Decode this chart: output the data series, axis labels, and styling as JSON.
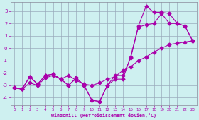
{
  "xlabel": "Windchill (Refroidissement éolien,°C)",
  "bg_color": "#cef0f0",
  "line_color": "#aa00aa",
  "grid_color": "#99aabb",
  "xlim": [
    -0.5,
    23.5
  ],
  "ylim": [
    -4.6,
    3.7
  ],
  "yticks": [
    -4,
    -3,
    -2,
    -1,
    0,
    1,
    2,
    3
  ],
  "xticks": [
    0,
    1,
    2,
    3,
    4,
    5,
    6,
    7,
    8,
    9,
    10,
    11,
    12,
    13,
    14,
    15,
    16,
    17,
    18,
    19,
    20,
    21,
    22,
    23
  ],
  "line1_x": [
    0,
    1,
    2,
    3,
    4,
    5,
    6,
    7,
    8,
    9,
    10,
    11,
    12,
    13,
    14,
    15,
    16,
    17,
    18,
    19,
    20,
    21,
    22,
    23
  ],
  "line1_y": [
    -3.2,
    -3.3,
    -2.8,
    -3.0,
    -2.4,
    -2.2,
    -2.5,
    -2.2,
    -2.6,
    -2.9,
    -3.0,
    -2.8,
    -2.5,
    -2.3,
    -1.8,
    -1.5,
    -1.0,
    -0.7,
    -0.3,
    0.0,
    0.3,
    0.4,
    0.5,
    0.6
  ],
  "line2_x": [
    0,
    1,
    2,
    3,
    4,
    5,
    6,
    7,
    8,
    9,
    10,
    11,
    12,
    13,
    14,
    15,
    16,
    17,
    18,
    19,
    20,
    21,
    22,
    23
  ],
  "line2_y": [
    -3.2,
    -3.3,
    -2.3,
    -2.9,
    -2.2,
    -2.1,
    -2.5,
    -3.0,
    -2.4,
    -3.0,
    -4.2,
    -4.3,
    -3.0,
    -2.2,
    -2.2,
    -0.8,
    1.7,
    1.9,
    2.0,
    2.8,
    2.0,
    2.0,
    1.8,
    0.6
  ],
  "line3_x": [
    0,
    1,
    2,
    3,
    4,
    5,
    6,
    7,
    8,
    9,
    10,
    11,
    12,
    13,
    14,
    15,
    16,
    17,
    18,
    19,
    20,
    21,
    22,
    23
  ],
  "line3_y": [
    -3.2,
    -3.3,
    -2.3,
    -2.9,
    -2.2,
    -2.1,
    -2.5,
    -3.0,
    -2.4,
    -3.0,
    -4.2,
    -4.3,
    -3.0,
    -2.5,
    -2.5,
    -0.7,
    1.8,
    3.4,
    2.9,
    2.9,
    2.8,
    2.0,
    1.8,
    0.6
  ]
}
